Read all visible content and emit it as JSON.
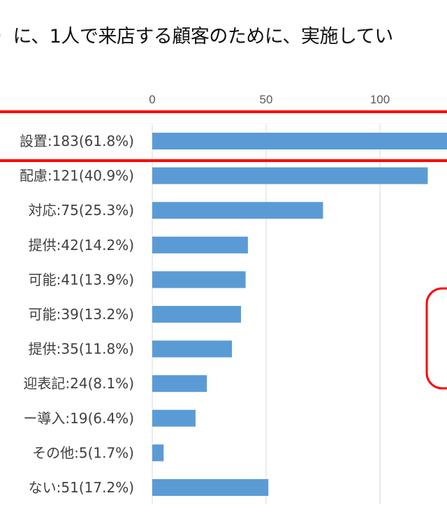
{
  "title_fragment": "）に、1人で来店する顧客のために、実施してい",
  "chart_data": {
    "type": "bar",
    "orientation": "horizontal",
    "categories": [
      "設置:183(61.8%)",
      "配慮:121(40.9%)",
      "対応:75(25.3%)",
      "提供:42(14.2%)",
      "可能:41(13.9%)",
      "可能:39(13.2%)",
      "提供:35(11.8%)",
      "迎表記:24(8.1%)",
      "ー導入:19(6.4%)",
      "その他:5(1.7%)",
      "ない:51(17.2%)"
    ],
    "values": [
      183,
      121,
      75,
      42,
      41,
      39,
      35,
      24,
      19,
      5,
      51
    ],
    "x_ticks": [
      "0",
      "50",
      "100"
    ],
    "grid": true,
    "bar_color": "#5B9BD5",
    "highlight_color": "#FF0000"
  }
}
